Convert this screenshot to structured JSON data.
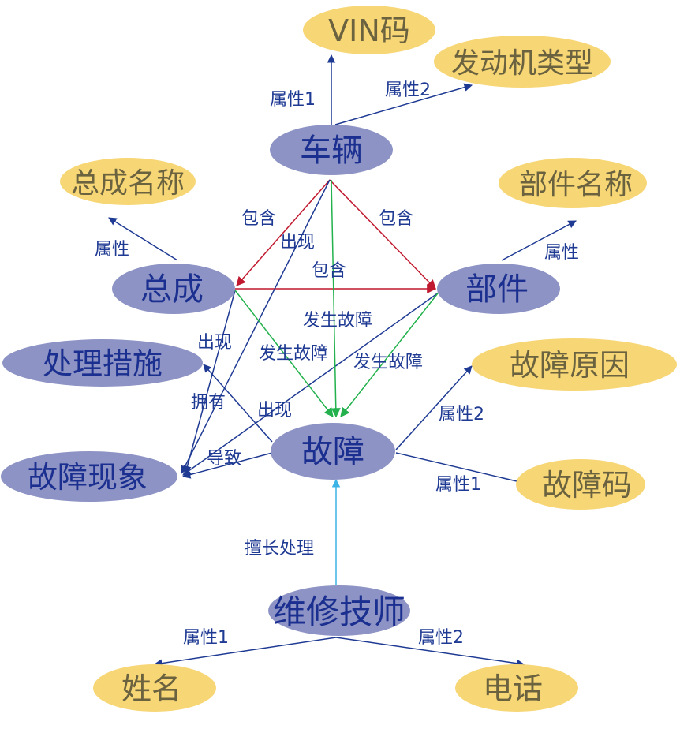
{
  "colors": {
    "entity_fill": "#8d93c4",
    "entity_text": "#1a2f8f",
    "attribute_fill": "#f7d675",
    "attribute_text": "#6b6340",
    "edge_navy": "#1f3a93",
    "edge_red": "#c0192f",
    "edge_green": "#22b14c",
    "edge_cyan": "#3cb4e6",
    "label_text": "#1f3a93"
  },
  "entities": {
    "vehicle": "车辆",
    "assembly": "总成",
    "part": "部件",
    "measure": "处理措施",
    "phenomenon": "故障现象",
    "fault": "故障",
    "technician": "维修技师"
  },
  "attributes": {
    "vin": "VIN码",
    "engine_type": "发动机类型",
    "assembly_name": "总成名称",
    "part_name": "部件名称",
    "fault_cause": "故障原因",
    "fault_code": "故障码",
    "name": "姓名",
    "phone": "电话"
  },
  "edge_labels": {
    "vehicle_vin": "属性1",
    "vehicle_engine": "属性2",
    "assembly_name": "属性",
    "part_name": "属性",
    "vehicle_assembly": "包含",
    "vehicle_part": "包含",
    "assembly_part": "包含",
    "vehicle_phenomenon": "出现",
    "assembly_phenomenon": "出现",
    "part_fault": "发生故障",
    "assembly_fault": "发生故障",
    "part_fault_2": "发生故障",
    "measure_phenomenon": "拥有",
    "fault_phenomenon_appear": "出现",
    "fault_phenomenon_cause": "导致",
    "fault_cause": "属性2",
    "fault_code": "属性1",
    "tech_fault": "擅长处理",
    "tech_name": "属性1",
    "tech_phone": "属性2"
  }
}
